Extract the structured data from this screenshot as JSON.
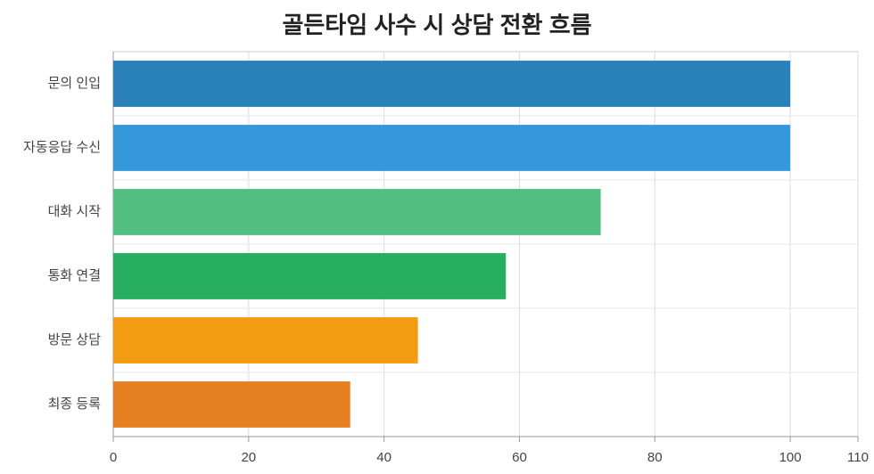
{
  "chart_data": {
    "type": "barh",
    "title": "골든타임 사수 시 상담 전환 흐름",
    "categories": [
      "문의 인입",
      "자동응답 수신",
      "대화 시작",
      "통화 연결",
      "방문 상담",
      "최종 등록"
    ],
    "values": [
      100,
      100,
      72,
      58,
      45,
      35
    ],
    "colors": [
      "#2a80b9",
      "#3498db",
      "#52be80",
      "#27ae60",
      "#f39c12",
      "#e67e22"
    ],
    "xlim": [
      0,
      110
    ],
    "xticks": [
      0,
      20,
      40,
      60,
      80,
      100,
      110
    ],
    "grid": true
  }
}
